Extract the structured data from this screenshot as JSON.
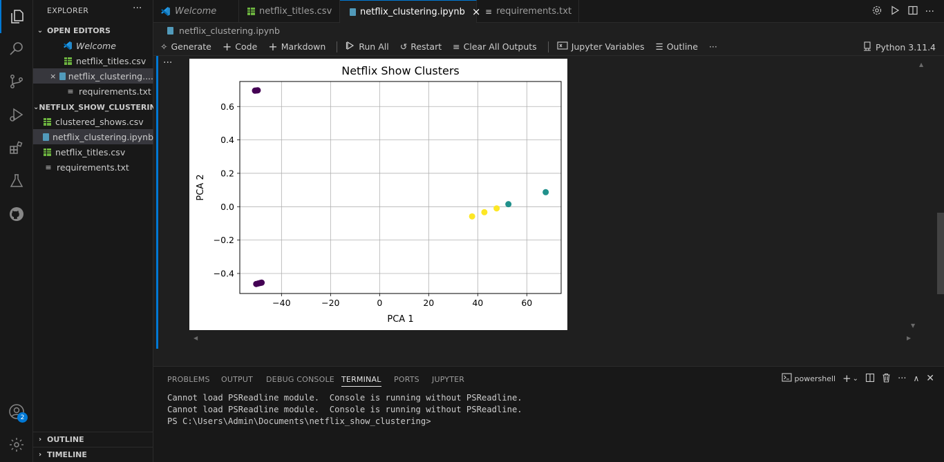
{
  "explorer": {
    "title": "EXPLORER",
    "more": "···",
    "open_editors_label": "OPEN EDITORS",
    "open_editors": [
      {
        "label": "Welcome",
        "icon": "vscode-icon",
        "italic": true
      },
      {
        "label": "netflix_titles.csv",
        "icon": "csv-icon"
      },
      {
        "label": "netflix_clustering....",
        "icon": "notebook-icon",
        "close": "×"
      },
      {
        "label": "requirements.txt",
        "icon": "text-file-icon"
      }
    ],
    "folder_label": "NETFLIX_SHOW_CLUSTERING",
    "files": [
      {
        "label": "clustered_shows.csv",
        "icon": "csv-icon"
      },
      {
        "label": "netflix_clustering.ipynb",
        "icon": "notebook-icon"
      },
      {
        "label": "netflix_titles.csv",
        "icon": "csv-icon"
      },
      {
        "label": "requirements.txt",
        "icon": "text-file-icon"
      }
    ],
    "outline_label": "OUTLINE",
    "timeline_label": "TIMELINE"
  },
  "accounts_badge": "2",
  "tabs": [
    {
      "label": "Welcome",
      "icon": "vscode-icon"
    },
    {
      "label": "netflix_titles.csv",
      "icon": "csv-icon"
    },
    {
      "label": "netflix_clustering.ipynb",
      "icon": "notebook-icon",
      "active": true,
      "close": "×"
    },
    {
      "label": "requirements.txt",
      "icon": "text-file-icon"
    }
  ],
  "breadcrumb": "netflix_clustering.ipynb",
  "toolbar": {
    "generate": "Generate",
    "code": "Code",
    "markdown": "Markdown",
    "run_all": "Run All",
    "restart": "Restart",
    "clear_outputs": "Clear All Outputs",
    "variables": "Jupyter Variables",
    "outline": "Outline",
    "more": "···",
    "kernel": "Python 3.11.4"
  },
  "cell_more": "···",
  "chart_data": {
    "type": "scatter",
    "title": "Netflix Show Clusters",
    "xlabel": "PCA 1",
    "ylabel": "PCA 2",
    "xlim": [
      -57,
      74
    ],
    "ylim": [
      -0.52,
      0.75
    ],
    "xticks": [
      -40,
      -20,
      0,
      20,
      40,
      60
    ],
    "yticks": [
      -0.4,
      -0.2,
      0.0,
      0.2,
      0.4,
      0.6
    ],
    "grid": true,
    "colors": {
      "cluster0": "#440154",
      "cluster1": "#21918c",
      "cluster2": "#fde725"
    },
    "points": [
      {
        "x": -50.8,
        "y": 0.695,
        "cluster": "cluster0"
      },
      {
        "x": -50.2,
        "y": 0.696,
        "cluster": "cluster0"
      },
      {
        "x": -49.7,
        "y": 0.697,
        "cluster": "cluster0"
      },
      {
        "x": -50.3,
        "y": -0.463,
        "cluster": "cluster0"
      },
      {
        "x": -49.5,
        "y": -0.46,
        "cluster": "cluster0"
      },
      {
        "x": -48.7,
        "y": -0.457,
        "cluster": "cluster0"
      },
      {
        "x": -48.1,
        "y": -0.455,
        "cluster": "cluster0"
      },
      {
        "x": 52.5,
        "y": 0.015,
        "cluster": "cluster1"
      },
      {
        "x": 67.7,
        "y": 0.087,
        "cluster": "cluster1"
      },
      {
        "x": 37.7,
        "y": -0.058,
        "cluster": "cluster2"
      },
      {
        "x": 42.7,
        "y": -0.033,
        "cluster": "cluster2"
      },
      {
        "x": 47.7,
        "y": -0.01,
        "cluster": "cluster2"
      }
    ]
  },
  "panel": {
    "tabs": [
      "PROBLEMS",
      "OUTPUT",
      "DEBUG CONSOLE",
      "TERMINAL",
      "PORTS",
      "JUPYTER"
    ],
    "active_tab": "TERMINAL",
    "shell": "powershell",
    "lines": [
      "Cannot load PSReadline module.  Console is running without PSReadline.",
      "Cannot load PSReadline module.  Console is running without PSReadline.",
      "PS C:\\Users\\Admin\\Documents\\netflix_show_clustering>"
    ]
  }
}
